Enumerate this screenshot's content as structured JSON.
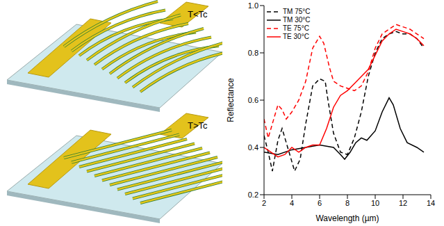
{
  "chart_data": {
    "type": "line",
    "annotations": [
      "T<Tc",
      "T>Tc"
    ],
    "xlabel": "Wavelength (µm)",
    "ylabel": "Reflectance",
    "xlim": [
      2,
      14
    ],
    "xticks": [
      2,
      4,
      6,
      8,
      10,
      12,
      14
    ],
    "ylim": [
      0.2,
      1
    ],
    "yticks": [
      0.2,
      0.4,
      0.6,
      0.8,
      {
        "value": 1,
        "label": "1.0"
      }
    ],
    "grid": false,
    "legend": "upper left",
    "series": [
      {
        "name": "TM 75°C",
        "color": "#000000",
        "line_style": "dashed",
        "x": [
          2,
          2.3,
          2.6,
          3.0,
          3.3,
          3.6,
          4.2,
          4.6,
          5.0,
          5.5,
          6.0,
          6.4,
          6.6,
          7.0,
          7.5,
          8.0,
          8.5,
          9.0,
          9.5,
          10,
          10.5,
          11,
          11.5,
          12,
          12.5,
          13,
          13.5
        ],
        "values": [
          0.45,
          0.38,
          0.3,
          0.43,
          0.48,
          0.42,
          0.3,
          0.35,
          0.5,
          0.66,
          0.69,
          0.68,
          0.6,
          0.46,
          0.38,
          0.37,
          0.44,
          0.55,
          0.7,
          0.8,
          0.86,
          0.88,
          0.89,
          0.88,
          0.88,
          0.86,
          0.82
        ]
      },
      {
        "name": "TM 30°C",
        "color": "#000000",
        "line_style": "solid",
        "x": [
          2,
          3,
          4,
          5,
          6,
          7,
          7.5,
          7.8,
          8.2,
          8.6,
          9.0,
          9.4,
          10,
          10.5,
          11,
          11.3,
          11.8,
          12.3,
          13,
          13.5
        ],
        "values": [
          0.38,
          0.37,
          0.39,
          0.4,
          0.41,
          0.4,
          0.37,
          0.35,
          0.38,
          0.42,
          0.44,
          0.43,
          0.47,
          0.55,
          0.61,
          0.58,
          0.48,
          0.42,
          0.4,
          0.38
        ]
      },
      {
        "name": "TE 75°C",
        "color": "#ff0000",
        "line_style": "dashed",
        "x": [
          2,
          2.3,
          2.6,
          3.0,
          3.3,
          3.6,
          4.0,
          4.5,
          5.0,
          5.5,
          6.0,
          6.3,
          6.7,
          7.0,
          7.5,
          8.0,
          8.5,
          9.0,
          9.5,
          10,
          10.5,
          11,
          11.5,
          12,
          12.5,
          13,
          13.5
        ],
        "values": [
          0.52,
          0.44,
          0.5,
          0.58,
          0.56,
          0.52,
          0.55,
          0.6,
          0.68,
          0.82,
          0.87,
          0.84,
          0.74,
          0.68,
          0.66,
          0.65,
          0.64,
          0.66,
          0.72,
          0.82,
          0.88,
          0.9,
          0.92,
          0.91,
          0.9,
          0.88,
          0.86
        ]
      },
      {
        "name": "TE 30°C",
        "color": "#ff0000",
        "line_style": "solid",
        "x": [
          2,
          3,
          3.5,
          4,
          4.5,
          5,
          5.5,
          6,
          6.5,
          7,
          7.5,
          8,
          8.5,
          9,
          9.5,
          10,
          10.5,
          11,
          11.5,
          12,
          12.5,
          13,
          13.5
        ],
        "values": [
          0.4,
          0.36,
          0.37,
          0.4,
          0.38,
          0.4,
          0.41,
          0.41,
          0.48,
          0.57,
          0.62,
          0.64,
          0.67,
          0.7,
          0.73,
          0.79,
          0.85,
          0.88,
          0.9,
          0.89,
          0.88,
          0.86,
          0.83
        ]
      }
    ]
  }
}
